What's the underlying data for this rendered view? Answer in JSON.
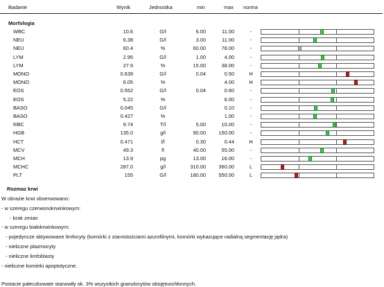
{
  "header": {
    "badanie": "Badanie",
    "wynik": "Wynik",
    "jednostka": "Jednostka",
    "min": "min",
    "max": "max",
    "norma": "norma"
  },
  "sections": {
    "morfologia": "Morfologia",
    "rozmaz": "Rozmaz krwi"
  },
  "colors": {
    "normal": "#2ecc40",
    "high": "#b71c1c",
    "low": "#b71c1c",
    "missing": "#b0b0b0"
  },
  "results": [
    {
      "name": "WBC",
      "value": "10.6",
      "unit": "G/l",
      "min": "6.00",
      "max": "11.00",
      "flag": "-",
      "status": "normal",
      "position": 0.61
    },
    {
      "name": "NEU",
      "value": "6.38",
      "unit": "G/l",
      "min": "3.00",
      "max": "11.00",
      "flag": "-",
      "status": "normal",
      "position": 0.42
    },
    {
      "name": "NEU",
      "value": "60.4",
      "unit": "%",
      "min": "60.00",
      "max": "78.00",
      "flag": "-",
      "status": "missing",
      "position": 0.02
    },
    {
      "name": "LYM",
      "value": "2.95",
      "unit": "G/l",
      "min": "1.00",
      "max": "4.00",
      "flag": "-",
      "status": "normal",
      "position": 0.63
    },
    {
      "name": "LYM",
      "value": "27.9",
      "unit": "%",
      "min": "15.00",
      "max": "38.00",
      "flag": "-",
      "status": "normal",
      "position": 0.56
    },
    {
      "name": "MONO",
      "value": "0.639",
      "unit": "G/l",
      "min": "0.04",
      "max": "0.50",
      "flag": "H",
      "status": "high",
      "position": 1.3
    },
    {
      "name": "MONO",
      "value": "6.05",
      "unit": "%",
      "min": "",
      "max": "4.00",
      "flag": "H",
      "status": "high",
      "position": 1.51
    },
    {
      "name": "EOS",
      "value": "0.552",
      "unit": "G/l",
      "min": "0.04",
      "max": "0.60",
      "flag": "-",
      "status": "normal",
      "position": 0.9
    },
    {
      "name": "EOS",
      "value": "5.22",
      "unit": "%",
      "min": "",
      "max": "6.00",
      "flag": "-",
      "status": "normal",
      "position": 0.89
    },
    {
      "name": "BASO",
      "value": "0.045",
      "unit": "G/l",
      "min": "",
      "max": "0.10",
      "flag": "-",
      "status": "normal",
      "position": 0.45
    },
    {
      "name": "BASO",
      "value": "0.427",
      "unit": "%",
      "min": "",
      "max": "1.00",
      "flag": "-",
      "status": "normal",
      "position": 0.42
    },
    {
      "name": "RBC",
      "value": "9.74",
      "unit": "T/l",
      "min": "5.00",
      "max": "10.00",
      "flag": "-",
      "status": "normal",
      "position": 0.95
    },
    {
      "name": "HGB",
      "value": "135.0",
      "unit": "g/l",
      "min": "90.00",
      "max": "150.00",
      "flag": "-",
      "status": "normal",
      "position": 0.75
    },
    {
      "name": "HCT",
      "value": "0.471",
      "unit": "l/l",
      "min": "0.30",
      "max": "0.44",
      "flag": "H",
      "status": "high",
      "position": 1.22
    },
    {
      "name": "MCV",
      "value": "49.3",
      "unit": "fl",
      "min": "40.00",
      "max": "55.00",
      "flag": "-",
      "status": "normal",
      "position": 0.62
    },
    {
      "name": "MCH",
      "value": "13.9",
      "unit": "pg",
      "min": "13.00",
      "max": "16.00",
      "flag": "-",
      "status": "normal",
      "position": 0.3
    },
    {
      "name": "MCHC",
      "value": "287.0",
      "unit": "g/l",
      "min": "310.00",
      "max": "360.00",
      "flag": "L",
      "status": "low",
      "position": -0.44
    },
    {
      "name": "PLT",
      "value": "155",
      "unit": "G/l",
      "min": "180.00",
      "max": "550.00",
      "flag": "L",
      "status": "low",
      "position": -0.07
    }
  ],
  "notes": [
    {
      "text": "W obrazie krwi obserwowano:",
      "indent": 0
    },
    {
      "text": "- w szeregu czerwonokrwinkowym:",
      "indent": 0
    },
    {
      "text": "- brak zmian",
      "indent": 2
    },
    {
      "text": "- w szeregu białokrwinkowym:",
      "indent": 0
    },
    {
      "text": "- pojedyncze aktywowane limfocyty (komórki z ziarnistościami azurofilnymi, komórki wykazujące radialną segmentację jądra)",
      "indent": 1
    },
    {
      "text": "- nieliczne plazmocyty",
      "indent": 1
    },
    {
      "text": "- nieliczne limfoblasty",
      "indent": 1
    },
    {
      "text": "- nieliczne komórki apoptotyczne.",
      "indent": 0
    },
    {
      "text": "",
      "indent": 0
    },
    {
      "text": "Postacie pałeczkowate stanowiły ok. 3% wszystkich granulocytów obojętnochłonnych.",
      "indent": 0
    }
  ]
}
